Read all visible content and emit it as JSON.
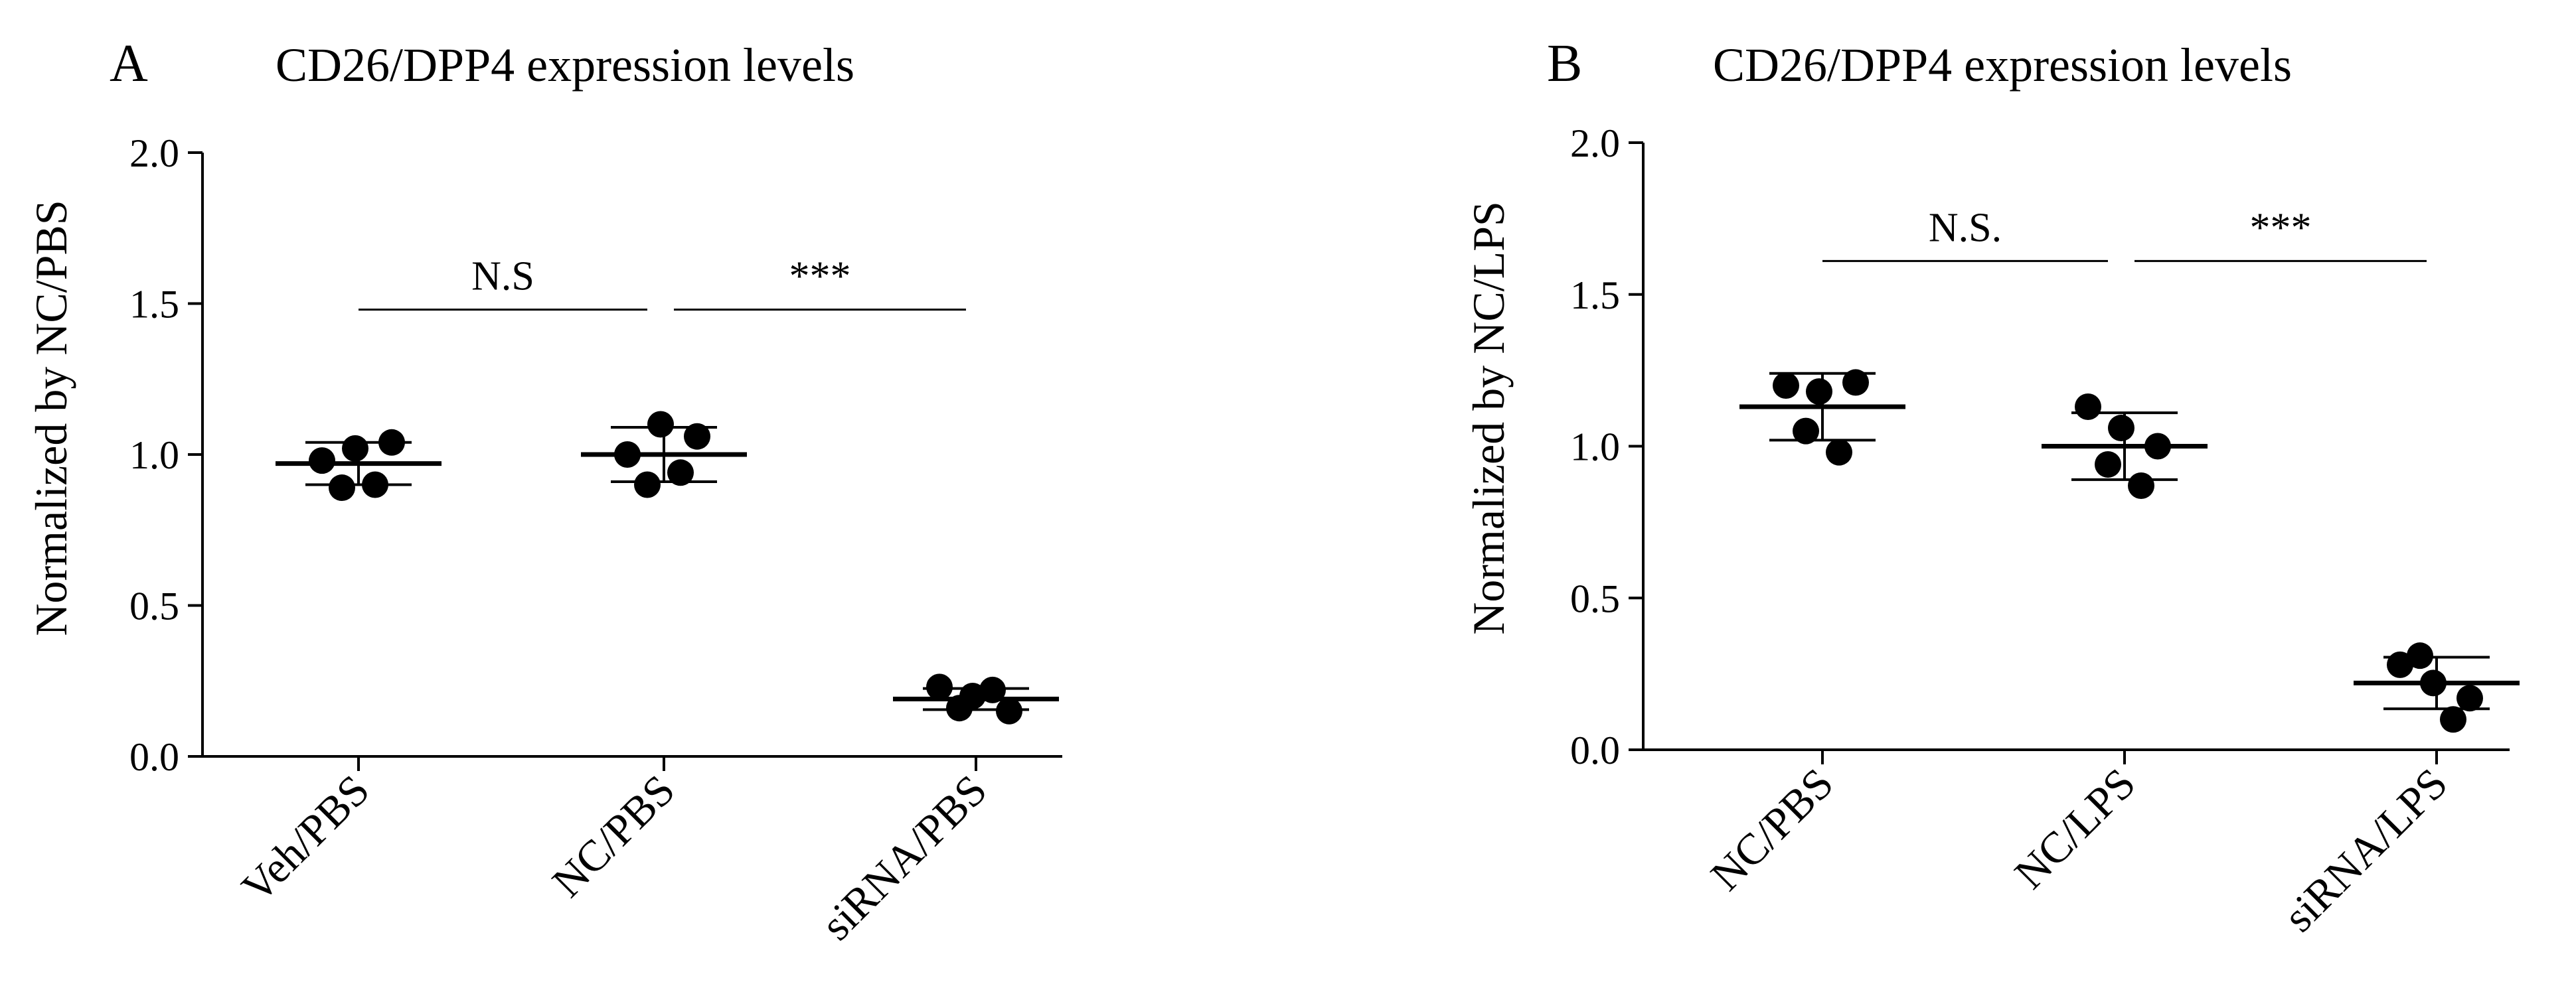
{
  "chart_data": [
    {
      "panel": "A",
      "type": "scatter",
      "title": "CD26/DPP4 expression levels",
      "xlabel": "",
      "ylabel": "Normalized by  NC/PBS",
      "ylim": [
        0,
        2.0
      ],
      "yticks": [
        "0.0",
        "0.5",
        "1.0",
        "1.5",
        "2.0"
      ],
      "categories": [
        "Veh/PBS",
        "NC/PBS",
        "siRNA/PBS"
      ],
      "groups": [
        {
          "name": "Veh/PBS",
          "mean": 0.97,
          "sd": 0.07,
          "points": [
            0.98,
            1.02,
            1.04,
            0.89,
            0.9
          ]
        },
        {
          "name": "NC/PBS",
          "mean": 1.0,
          "sd": 0.09,
          "points": [
            1.0,
            1.1,
            1.06,
            0.9,
            0.94
          ]
        },
        {
          "name": "siRNA/PBS",
          "mean": 0.19,
          "sd": 0.035,
          "points": [
            0.23,
            0.2,
            0.15,
            0.16,
            0.22
          ]
        }
      ],
      "comparisons": [
        {
          "from": "Veh/PBS",
          "to": "NC/PBS",
          "label": "N.S",
          "y": 1.48
        },
        {
          "from": "NC/PBS",
          "to": "siRNA/PBS",
          "label": "***",
          "y": 1.48
        }
      ]
    },
    {
      "panel": "B",
      "type": "scatter",
      "title": "CD26/DPP4 expression levels",
      "xlabel": "",
      "ylabel": "Normalized by  NC/LPS",
      "ylim": [
        0,
        2.0
      ],
      "yticks": [
        "0.0",
        "0.5",
        "1.0",
        "1.5",
        "2.0"
      ],
      "categories": [
        "NC/PBS",
        "NC/LPS",
        "siRNA/LPS"
      ],
      "groups": [
        {
          "name": "NC/PBS",
          "mean": 1.13,
          "sd": 0.11,
          "points": [
            1.2,
            1.18,
            1.21,
            1.05,
            0.98
          ]
        },
        {
          "name": "NC/LPS",
          "mean": 1.0,
          "sd": 0.11,
          "points": [
            1.13,
            1.06,
            1.0,
            0.94,
            0.87
          ]
        },
        {
          "name": "siRNA/LPS",
          "mean": 0.22,
          "sd": 0.085,
          "points": [
            0.28,
            0.22,
            0.17,
            0.31,
            0.1
          ]
        }
      ],
      "comparisons": [
        {
          "from": "NC/PBS",
          "to": "NC/LPS",
          "label": "N.S.",
          "y": 1.61
        },
        {
          "from": "NC/LPS",
          "to": "siRNA/LPS",
          "label": "***",
          "y": 1.61
        }
      ]
    }
  ]
}
